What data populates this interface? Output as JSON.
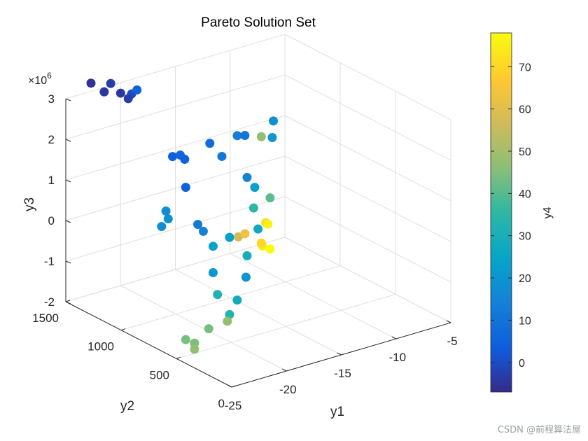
{
  "chart_data": {
    "type": "scatter3d",
    "title": "Pareto Solution Set",
    "xlabel": "y1",
    "ylabel": "y2",
    "zlabel": "y3",
    "colorbar_label": "y4",
    "z_exponent_label": "×10",
    "z_exponent": "6",
    "xlim": [
      -25,
      -5
    ],
    "ylim": [
      0,
      1500
    ],
    "zlim": [
      -2,
      3
    ],
    "clim": [
      -7,
      78
    ],
    "x_ticks": [
      "-25",
      "-20",
      "-15",
      "-10",
      "-5"
    ],
    "y_ticks": [
      "0",
      "500",
      "1000",
      "1500"
    ],
    "z_ticks": [
      "-2",
      "-1",
      "0",
      "1",
      "2",
      "3"
    ],
    "c_ticks": [
      "0",
      "10",
      "20",
      "30",
      "40",
      "50",
      "60",
      "70"
    ],
    "grid": true,
    "colormap": "parula",
    "points": [
      {
        "x": -22.7,
        "y": 1500,
        "z": 3.2,
        "c": -5
      },
      {
        "x": -22.0,
        "y": 1450,
        "z": 3.0,
        "c": -4
      },
      {
        "x": -20.9,
        "y": 1500,
        "z": 3.05,
        "c": -3
      },
      {
        "x": -20.5,
        "y": 1450,
        "z": 2.85,
        "c": -4
      },
      {
        "x": -19.5,
        "y": 1450,
        "z": 2.75,
        "c": 0
      },
      {
        "x": -18.5,
        "y": 1500,
        "z": 2.7,
        "c": 5
      },
      {
        "x": -19.3,
        "y": 1500,
        "z": 2.55,
        "c": -3
      },
      {
        "x": -20.1,
        "y": 1020,
        "z": 1.86,
        "c": 5
      },
      {
        "x": -19.4,
        "y": 1020,
        "z": 1.84,
        "c": 6
      },
      {
        "x": -19.2,
        "y": 1000,
        "z": 1.75,
        "c": 5
      },
      {
        "x": -16.9,
        "y": 1000,
        "z": 1.96,
        "c": 8
      },
      {
        "x": -19.1,
        "y": 1000,
        "z": 1.05,
        "c": 5
      },
      {
        "x": -15.8,
        "y": 1000,
        "z": 1.55,
        "c": 11
      },
      {
        "x": -14.4,
        "y": 1000,
        "z": 1.95,
        "c": 13
      },
      {
        "x": -13.7,
        "y": 1000,
        "z": 1.9,
        "c": 11
      },
      {
        "x": -20.4,
        "y": 1050,
        "z": 0.5,
        "c": 18
      },
      {
        "x": -20.7,
        "y": 1000,
        "z": 0.4,
        "c": 19
      },
      {
        "x": -20.8,
        "y": 1050,
        "z": 0.15,
        "c": 18
      },
      {
        "x": -18.0,
        "y": 1000,
        "z": 0.05,
        "c": 12
      },
      {
        "x": -18.0,
        "y": 950,
        "z": -0.05,
        "c": 14
      },
      {
        "x": -16.6,
        "y": 1000,
        "z": -0.6,
        "c": 24
      },
      {
        "x": -15.1,
        "y": 1000,
        "z": -0.5,
        "c": 23
      },
      {
        "x": -13.5,
        "y": 1000,
        "z": 0.85,
        "c": 15
      },
      {
        "x": -12.2,
        "y": 1000,
        "z": 1.75,
        "c": 47
      },
      {
        "x": -11.1,
        "y": 1000,
        "z": 2.05,
        "c": 19
      },
      {
        "x": -11.2,
        "y": 1000,
        "z": 1.65,
        "c": 20
      },
      {
        "x": -12.8,
        "y": 1000,
        "z": 0.55,
        "c": 24
      },
      {
        "x": -12.9,
        "y": 1000,
        "z": 0.05,
        "c": 35
      },
      {
        "x": -11.4,
        "y": 1000,
        "z": 0.18,
        "c": 41
      },
      {
        "x": -14.3,
        "y": 1000,
        "z": -0.55,
        "c": 57
      },
      {
        "x": -13.7,
        "y": 1000,
        "z": -0.52,
        "c": 63
      },
      {
        "x": -12.5,
        "y": 1000,
        "z": -0.5,
        "c": 27
      },
      {
        "x": -11.8,
        "y": 1000,
        "z": -0.4,
        "c": 72
      },
      {
        "x": -11.6,
        "y": 1000,
        "z": -0.45,
        "c": 76
      },
      {
        "x": -12.1,
        "y": 1000,
        "z": -0.95,
        "c": 74
      },
      {
        "x": -11.4,
        "y": 1000,
        "z": -1.08,
        "c": 78
      },
      {
        "x": -12.2,
        "y": 1000,
        "z": -0.87,
        "c": 70
      },
      {
        "x": -13.5,
        "y": 1000,
        "z": -1.08,
        "c": 29
      },
      {
        "x": -13.6,
        "y": 1000,
        "z": -1.6,
        "c": 20
      },
      {
        "x": -16.6,
        "y": 1000,
        "z": -1.25,
        "c": 21
      },
      {
        "x": -16.2,
        "y": 1000,
        "z": -1.82,
        "c": 32
      },
      {
        "x": -14.4,
        "y": 1000,
        "z": -2.1,
        "c": 28
      },
      {
        "x": -15.1,
        "y": 1000,
        "z": -2.4,
        "c": 33
      },
      {
        "x": -15.3,
        "y": 1000,
        "z": -2.55,
        "c": 48
      },
      {
        "x": -17.0,
        "y": 1000,
        "z": -2.6,
        "c": 44
      },
      {
        "x": -19.1,
        "y": 1000,
        "z": -2.7,
        "c": 44
      },
      {
        "x": -18.3,
        "y": 1000,
        "z": -2.85,
        "c": 45
      },
      {
        "x": -18.3,
        "y": 1000,
        "z": -3.0,
        "c": 47
      }
    ]
  },
  "watermark": "CSDN @前程算法屋"
}
